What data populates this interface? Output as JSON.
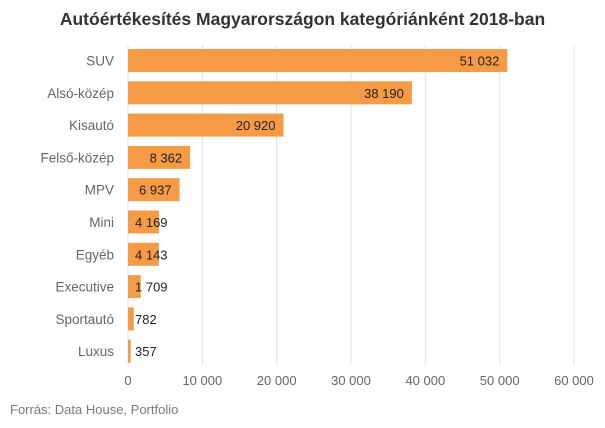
{
  "title": "Autóértékesítés Magyarországon kategóriánként 2018-ban",
  "source": "Forrás: Data House, Portfolio",
  "colors": {
    "bar": "#f59a45",
    "grid": "#e3e3e3"
  },
  "chart_data": {
    "type": "bar",
    "orientation": "horizontal",
    "title": "Autóértékesítés Magyarországon kategóriánként 2018-ban",
    "categories": [
      "SUV",
      "Alsó-közép",
      "Kisautó",
      "Felső-közép",
      "MPV",
      "Mini",
      "Egyéb",
      "Executive",
      "Sportautó",
      "Luxus"
    ],
    "values": [
      51032,
      38190,
      20920,
      8362,
      6937,
      4169,
      4143,
      1709,
      782,
      357
    ],
    "value_labels": [
      "51 032",
      "38 190",
      "20 920",
      "8 362",
      "6 937",
      "4 169",
      "4 143",
      "1 709",
      "782",
      "357"
    ],
    "xlim": [
      0,
      60000
    ],
    "x_ticks": [
      0,
      10000,
      20000,
      30000,
      40000,
      50000,
      60000
    ],
    "x_tick_labels": [
      "0",
      "10 000",
      "20 000",
      "30 000",
      "40 000",
      "50 000",
      "60 000"
    ],
    "grid": "vertical",
    "legend": "none"
  }
}
